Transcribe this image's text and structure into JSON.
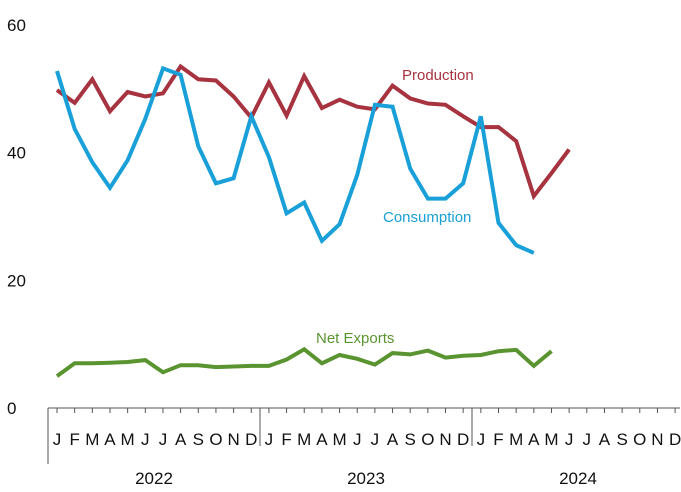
{
  "chart_data": {
    "type": "line",
    "ylim": [
      0,
      60
    ],
    "yticks": [
      0,
      20,
      40,
      60
    ],
    "ytick_labels": [
      "0",
      "20",
      "40",
      "60"
    ],
    "month_labels": [
      "J",
      "F",
      "M",
      "A",
      "M",
      "J",
      "J",
      "A",
      "S",
      "O",
      "N",
      "D",
      "J",
      "F",
      "M",
      "A",
      "M",
      "J",
      "J",
      "A",
      "S",
      "O",
      "N",
      "D",
      "J",
      "F",
      "M",
      "A",
      "M",
      "J",
      "J",
      "A",
      "S",
      "O",
      "N",
      "D"
    ],
    "years": [
      "2022",
      "2023",
      "2024"
    ],
    "grid": false,
    "series": [
      {
        "name": "Production",
        "color": "#a6333f",
        "values": [
          49.8,
          47.8,
          51.5,
          46.5,
          49.5,
          48.8,
          49.3,
          53.5,
          51.5,
          51.3,
          48.8,
          45.5,
          51.0,
          45.8,
          52.0,
          47.0,
          48.3,
          47.2,
          46.8,
          50.5,
          48.5,
          47.7,
          47.5,
          45.7,
          44.0,
          44.0,
          41.8,
          33.2,
          36.8,
          40.5
        ]
      },
      {
        "name": "Consumption",
        "color": "#1aa0d8",
        "values": [
          52.8,
          43.7,
          38.5,
          34.5,
          38.8,
          45.3,
          53.2,
          52.2,
          41.0,
          35.2,
          36.0,
          45.7,
          39.3,
          30.5,
          32.2,
          26.2,
          28.8,
          36.5,
          47.5,
          47.2,
          37.5,
          32.8,
          32.8,
          35.2,
          45.7,
          29.0,
          25.5,
          24.3
        ]
      },
      {
        "name": "Net Exports",
        "color": "#5a9431",
        "values": [
          5.0,
          7.0,
          7.0,
          7.1,
          7.2,
          7.5,
          5.6,
          6.7,
          6.7,
          6.4,
          6.5,
          6.6,
          6.6,
          7.6,
          9.2,
          7.0,
          8.3,
          7.7,
          6.8,
          8.6,
          8.4,
          9.0,
          7.9,
          8.2,
          8.3,
          8.9,
          9.1,
          6.6,
          8.9
        ]
      }
    ]
  }
}
